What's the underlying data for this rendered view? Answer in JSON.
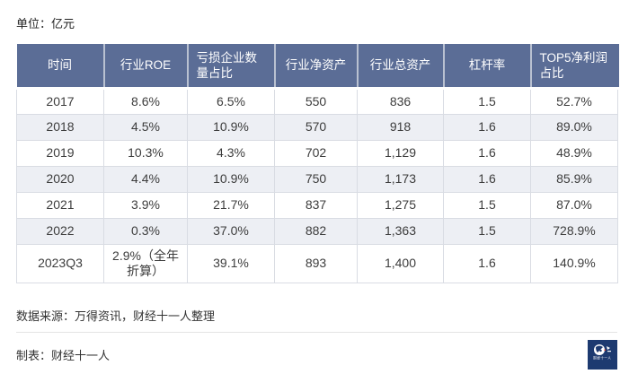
{
  "unit_label": "单位：亿元",
  "chart_data": {
    "type": "table",
    "unit": "亿元",
    "columns": [
      "时间",
      "行业ROE",
      "亏损企业数量占比",
      "行业净资产",
      "行业总资产",
      "杠杆率",
      "TOP5净利润占比"
    ],
    "rows": [
      [
        "2017",
        "8.6%",
        "6.5%",
        "550",
        "836",
        "1.5",
        "52.7%"
      ],
      [
        "2018",
        "4.5%",
        "10.9%",
        "570",
        "918",
        "1.6",
        "89.0%"
      ],
      [
        "2019",
        "10.3%",
        "4.3%",
        "702",
        "1,129",
        "1.6",
        "48.9%"
      ],
      [
        "2020",
        "4.4%",
        "10.9%",
        "750",
        "1,173",
        "1.6",
        "85.9%"
      ],
      [
        "2021",
        "3.9%",
        "21.7%",
        "837",
        "1,275",
        "1.5",
        "87.0%"
      ],
      [
        "2022",
        "0.3%",
        "37.0%",
        "882",
        "1,363",
        "1.5",
        "728.9%"
      ],
      [
        "2023Q3",
        "2.9%（全年折算）",
        "39.1%",
        "893",
        "1,400",
        "1.6",
        "140.9%"
      ]
    ]
  },
  "footer": {
    "source": "数据来源：万得资讯，财经十一人整理",
    "credit": "制表：财经十一人",
    "logo_text": "财经十一人"
  },
  "colors": {
    "header_bg": "#5b6d96",
    "header_text": "#ffffff",
    "row_stripe": "#edeff4",
    "cell_border": "#d9dce3",
    "logo_bg": "#1d3a70",
    "logo_accent": "#d03a2b"
  }
}
